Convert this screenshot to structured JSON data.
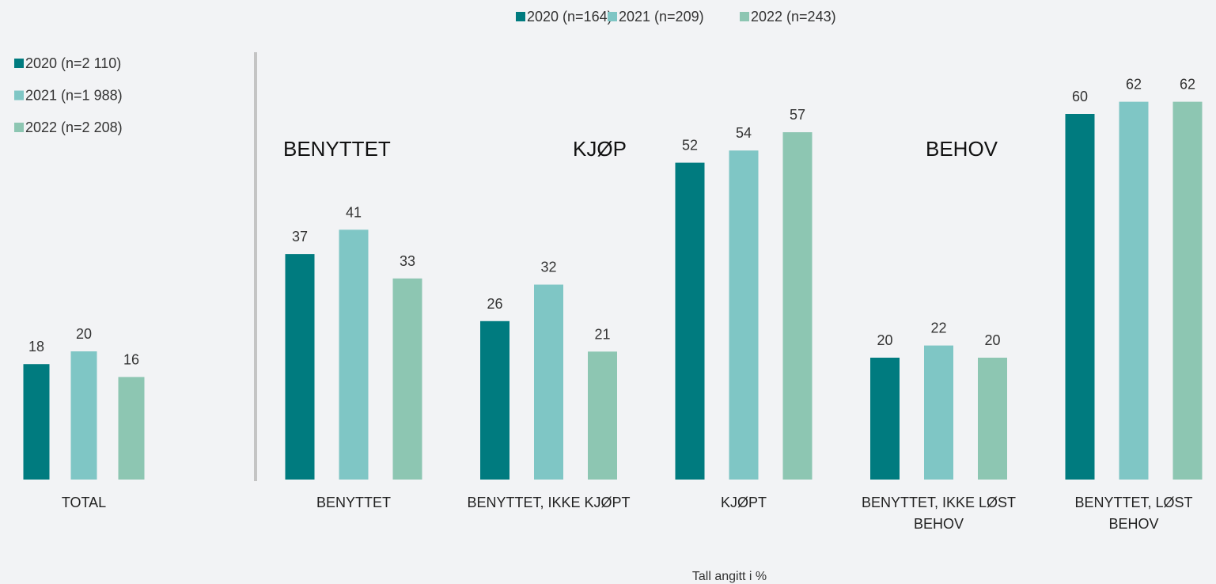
{
  "chart_data": [
    {
      "type": "bar",
      "categories": [
        "TOTAL"
      ],
      "series": [
        {
          "name": "2020 (n=2 110)",
          "color": "#007b7f",
          "values": [
            18
          ]
        },
        {
          "name": "2021 (n=1 988)",
          "color": "#7fc6c5",
          "values": [
            20
          ]
        },
        {
          "name": "2022 (n=2 208)",
          "color": "#8dc6b2",
          "values": [
            16
          ]
        }
      ]
    },
    {
      "type": "bar",
      "categories": [
        "BENYTTET",
        "BENYTTET, IKKE KJØPT",
        "KJØPT",
        "BENYTTET, IKKE LØST BEHOV",
        "BENYTTET, LØST BEHOV"
      ],
      "series": [
        {
          "name": "2020 (n=164)",
          "color": "#007b7f",
          "values": [
            37,
            26,
            52,
            20,
            60
          ]
        },
        {
          "name": "2021 (n=209)",
          "color": "#7fc6c5",
          "values": [
            41,
            32,
            54,
            22,
            62
          ]
        },
        {
          "name": "2022 (n=243)",
          "color": "#8dc6b2",
          "values": [
            33,
            21,
            57,
            20,
            62
          ]
        }
      ],
      "annotations": [
        "BENYTTET",
        "KJØP",
        "BEHOV"
      ],
      "note": "Tall angitt i %"
    }
  ]
}
